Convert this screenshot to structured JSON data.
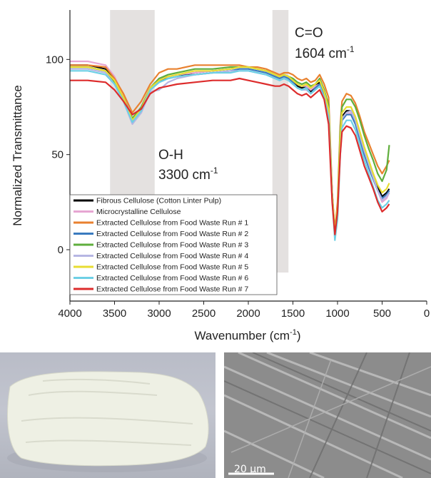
{
  "chart_data": {
    "type": "line",
    "xlabel": "Wavenumber (cm",
    "xlabel_sup": "-1",
    "xlabel_end": ")",
    "ylabel": "Normalized Transmittance",
    "xlim": [
      4000,
      0
    ],
    "ylim": [
      -27,
      126
    ],
    "x_ticks": [
      4000,
      3500,
      3000,
      2500,
      2000,
      1500,
      1000,
      500,
      0
    ],
    "x_tick_labels": [
      "4000",
      "3500",
      "3000",
      "2500",
      "2000",
      "1500",
      "1000",
      "500",
      "0"
    ],
    "y_ticks": [
      100,
      50,
      0
    ],
    "y_tick_labels": [
      "100",
      "50",
      "0"
    ],
    "grid": false,
    "legend_placement": "bottom-left",
    "annotations": {
      "oh": {
        "line1": "O-H",
        "line2": "3300 cm",
        "sup": "-1",
        "band": [
          3050,
          3550
        ]
      },
      "co": {
        "line1": "C=O",
        "line2": "1604 cm",
        "sup": "-1",
        "band": [
          1550,
          1730
        ]
      }
    },
    "x": [
      4000,
      3800,
      3600,
      3500,
      3400,
      3300,
      3200,
      3100,
      3000,
      2900,
      2800,
      2600,
      2400,
      2200,
      2100,
      2000,
      1900,
      1800,
      1700,
      1650,
      1600,
      1550,
      1500,
      1450,
      1400,
      1350,
      1300,
      1250,
      1200,
      1150,
      1100,
      1060,
      1030,
      1000,
      970,
      950,
      900,
      850,
      800,
      750,
      700,
      650,
      600,
      550,
      500,
      450,
      420
    ],
    "series": [
      {
        "name": "Fibrous Cellulose (Cotton Linter Pulp)",
        "color": "#000000",
        "values": [
          97,
          97,
          95,
          89,
          80,
          67,
          73,
          84,
          89,
          90,
          91,
          93,
          94,
          95,
          96,
          96,
          95,
          94,
          92,
          91,
          92,
          91,
          89,
          86,
          85,
          86,
          83,
          86,
          88,
          82,
          73,
          30,
          8,
          20,
          55,
          70,
          73,
          73,
          68,
          60,
          52,
          45,
          40,
          33,
          28,
          30,
          32
        ]
      },
      {
        "name": "Microcrystalline Cellulose",
        "color": "#e6a6d2",
        "values": [
          99,
          99,
          97,
          91,
          81,
          69,
          75,
          85,
          90,
          91,
          92,
          93,
          94,
          95,
          96,
          96,
          95,
          94,
          92,
          91,
          92,
          91,
          89,
          87,
          86,
          86,
          84,
          86,
          87,
          81,
          70,
          28,
          8,
          20,
          54,
          68,
          71,
          72,
          68,
          60,
          52,
          44,
          38,
          31,
          25,
          27,
          30
        ]
      },
      {
        "name": "Extracted Cellulose from Food Waste Run # 1",
        "color": "#e9812f",
        "values": [
          97,
          97,
          96,
          90,
          82,
          72,
          78,
          87,
          93,
          95,
          95,
          97,
          97,
          97,
          97,
          96,
          96,
          95,
          93,
          92,
          93,
          93,
          92,
          90,
          89,
          90,
          88,
          89,
          92,
          87,
          80,
          30,
          10,
          25,
          65,
          78,
          82,
          81,
          77,
          70,
          62,
          56,
          50,
          44,
          40,
          44,
          47
        ]
      },
      {
        "name": "Extracted Cellulose from Food Waste Run # 2",
        "color": "#3a7bbf",
        "values": [
          96,
          96,
          94,
          88,
          79,
          67,
          73,
          84,
          88,
          90,
          91,
          92,
          93,
          94,
          95,
          95,
          94,
          93,
          91,
          90,
          91,
          90,
          88,
          85,
          84,
          85,
          82,
          85,
          87,
          81,
          71,
          29,
          7,
          18,
          53,
          68,
          71,
          71,
          66,
          58,
          50,
          43,
          37,
          31,
          27,
          29,
          31
        ]
      },
      {
        "name": "Extracted Cellulose from Food Waste Run # 3",
        "color": "#5fae3c",
        "values": [
          96,
          96,
          94,
          88,
          80,
          69,
          75,
          85,
          90,
          92,
          93,
          95,
          95,
          96,
          96,
          96,
          95,
          94,
          92,
          91,
          92,
          91,
          90,
          88,
          87,
          88,
          86,
          87,
          90,
          84,
          76,
          29,
          9,
          22,
          62,
          75,
          79,
          79,
          75,
          68,
          60,
          53,
          47,
          40,
          36,
          42,
          55
        ]
      },
      {
        "name": "Extracted Cellulose from Food Waste Run # 4",
        "color": "#b6b6e3",
        "values": [
          95,
          95,
          93,
          87,
          78,
          66,
          72,
          83,
          84,
          88,
          90,
          92,
          93,
          94,
          94,
          94,
          93,
          92,
          90,
          89,
          90,
          89,
          87,
          85,
          84,
          84,
          82,
          84,
          86,
          80,
          72,
          27,
          8,
          20,
          55,
          69,
          72,
          73,
          68,
          60,
          52,
          45,
          38,
          31,
          26,
          28,
          30
        ]
      },
      {
        "name": "Extracted Cellulose from Food Waste Run # 5",
        "color": "#e8dd32",
        "values": [
          96,
          96,
          94,
          89,
          80,
          68,
          74,
          85,
          89,
          91,
          92,
          94,
          94,
          95,
          96,
          96,
          95,
          94,
          92,
          91,
          92,
          91,
          89,
          87,
          86,
          87,
          85,
          87,
          89,
          83,
          74,
          29,
          9,
          22,
          58,
          72,
          75,
          75,
          70,
          62,
          54,
          47,
          40,
          34,
          30,
          32,
          35
        ]
      },
      {
        "name": "Extracted Cellulose from Food Waste Run # 6",
        "color": "#6ed0e5",
        "values": [
          94,
          94,
          92,
          87,
          78,
          67,
          73,
          84,
          88,
          90,
          91,
          92,
          93,
          93,
          94,
          94,
          93,
          92,
          90,
          89,
          90,
          89,
          87,
          85,
          84,
          85,
          82,
          84,
          86,
          80,
          70,
          26,
          5,
          16,
          50,
          64,
          68,
          68,
          63,
          55,
          47,
          40,
          33,
          26,
          22,
          24,
          26
        ]
      },
      {
        "name": "Extracted Cellulose from Food Waste Run # 7",
        "color": "#dd2c2c",
        "values": [
          89,
          89,
          88,
          84,
          78,
          71,
          74,
          82,
          85,
          86,
          87,
          88,
          89,
          89,
          90,
          89,
          88,
          87,
          86,
          86,
          87,
          86,
          84,
          82,
          81,
          82,
          80,
          82,
          84,
          79,
          66,
          25,
          8,
          20,
          50,
          62,
          65,
          64,
          60,
          52,
          44,
          38,
          32,
          25,
          20,
          22,
          24
        ]
      }
    ]
  },
  "scale_bar": {
    "label": "20 μm"
  }
}
